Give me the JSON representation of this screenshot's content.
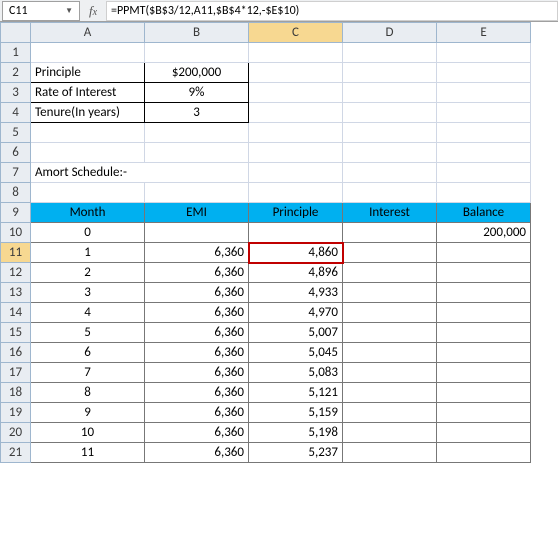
{
  "namebox": "C11",
  "formula": "=PPMT($B$3/12,A11,$B$4*12,-$E$10)",
  "columns": [
    "A",
    "B",
    "C",
    "D",
    "E"
  ],
  "params": {
    "r2": {
      "label": "Principle",
      "value": "$200,000"
    },
    "r3": {
      "label": "Rate of Interest",
      "value": "9%"
    },
    "r4": {
      "label": "Tenure(In years)",
      "value": "3"
    }
  },
  "section_title": "Amort Schedule:-",
  "headers": [
    "Month",
    "EMI",
    "Principle",
    "Interest",
    "Balance"
  ],
  "rows": [
    {
      "rn": 10,
      "month": "0",
      "emi": "",
      "principle": "",
      "interest": "",
      "balance": "200,000"
    },
    {
      "rn": 11,
      "month": "1",
      "emi": "6,360",
      "principle": "4,860",
      "interest": "",
      "balance": ""
    },
    {
      "rn": 12,
      "month": "2",
      "emi": "6,360",
      "principle": "4,896",
      "interest": "",
      "balance": ""
    },
    {
      "rn": 13,
      "month": "3",
      "emi": "6,360",
      "principle": "4,933",
      "interest": "",
      "balance": ""
    },
    {
      "rn": 14,
      "month": "4",
      "emi": "6,360",
      "principle": "4,970",
      "interest": "",
      "balance": ""
    },
    {
      "rn": 15,
      "month": "5",
      "emi": "6,360",
      "principle": "5,007",
      "interest": "",
      "balance": ""
    },
    {
      "rn": 16,
      "month": "6",
      "emi": "6,360",
      "principle": "5,045",
      "interest": "",
      "balance": ""
    },
    {
      "rn": 17,
      "month": "7",
      "emi": "6,360",
      "principle": "5,083",
      "interest": "",
      "balance": ""
    },
    {
      "rn": 18,
      "month": "8",
      "emi": "6,360",
      "principle": "5,121",
      "interest": "",
      "balance": ""
    },
    {
      "rn": 19,
      "month": "9",
      "emi": "6,360",
      "principle": "5,159",
      "interest": "",
      "balance": ""
    },
    {
      "rn": 20,
      "month": "10",
      "emi": "6,360",
      "principle": "5,198",
      "interest": "",
      "balance": ""
    },
    {
      "rn": 21,
      "month": "11",
      "emi": "6,360",
      "principle": "5,237",
      "interest": "",
      "balance": ""
    }
  ],
  "active": {
    "col": "C",
    "row": 11
  }
}
